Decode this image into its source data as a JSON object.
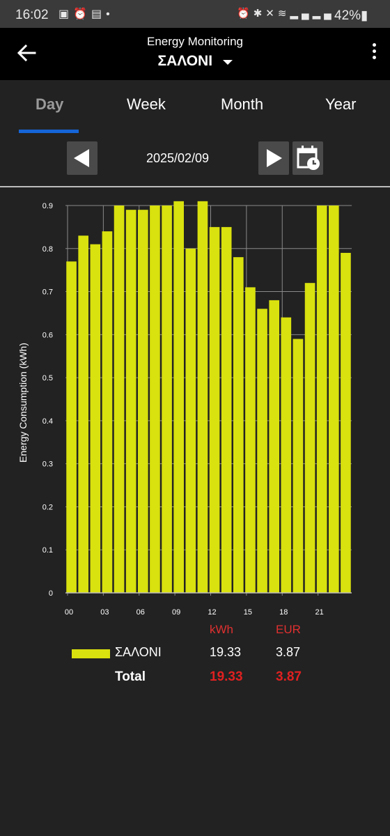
{
  "status_bar": {
    "time": "16:02",
    "battery": "42%",
    "left_icons": [
      "gallery-icon",
      "alarm-icon",
      "cast-icon",
      "dot-icon"
    ],
    "right_icons": [
      "alarm-icon",
      "bluetooth-icon",
      "mute-icon",
      "wifi-icon",
      "signal-icon",
      "signal-icon",
      "battery-icon"
    ]
  },
  "app_bar": {
    "title": "Energy Monitoring",
    "device": "ΣΑΛΟΝΙ"
  },
  "tabs": [
    {
      "label": "Day",
      "active": true
    },
    {
      "label": "Week",
      "active": false
    },
    {
      "label": "Month",
      "active": false
    },
    {
      "label": "Year",
      "active": false
    }
  ],
  "date_nav": {
    "date": "2025/02/09"
  },
  "colors": {
    "bar": "#d9e10e",
    "accent": "#1565d8",
    "highlight": "#e02020",
    "background": "#222222"
  },
  "chart_data": {
    "type": "bar",
    "ylabel": "Energy Consumption (kWh)",
    "ylim": [
      0,
      0.9
    ],
    "y_ticks": [
      "0",
      "0.1",
      "0.2",
      "0.3",
      "0.4",
      "0.5",
      "0.6",
      "0.7",
      "0.8",
      "0.9"
    ],
    "x_ticks": [
      "00",
      "03",
      "06",
      "09",
      "12",
      "15",
      "18",
      "21"
    ],
    "categories": [
      "00",
      "01",
      "02",
      "03",
      "04",
      "05",
      "06",
      "07",
      "08",
      "09",
      "10",
      "11",
      "12",
      "13",
      "14",
      "15",
      "16",
      "17",
      "18",
      "19",
      "20",
      "21",
      "22",
      "23"
    ],
    "series": [
      {
        "name": "ΣΑΛΟΝΙ",
        "values": [
          0.77,
          0.83,
          0.81,
          0.84,
          0.9,
          0.89,
          0.89,
          0.9,
          0.9,
          0.91,
          0.8,
          0.91,
          0.85,
          0.85,
          0.78,
          0.71,
          0.66,
          0.68,
          0.64,
          0.59,
          0.72,
          0.9,
          0.9,
          0.79
        ]
      }
    ],
    "grid": true
  },
  "legend": {
    "col_kwh": "kWh",
    "col_eur": "EUR",
    "rows": [
      {
        "name": "ΣΑΛΟΝΙ",
        "kwh": "19.33",
        "eur": "3.87"
      }
    ],
    "total_label": "Total",
    "total_kwh": "19.33",
    "total_eur": "3.87"
  }
}
